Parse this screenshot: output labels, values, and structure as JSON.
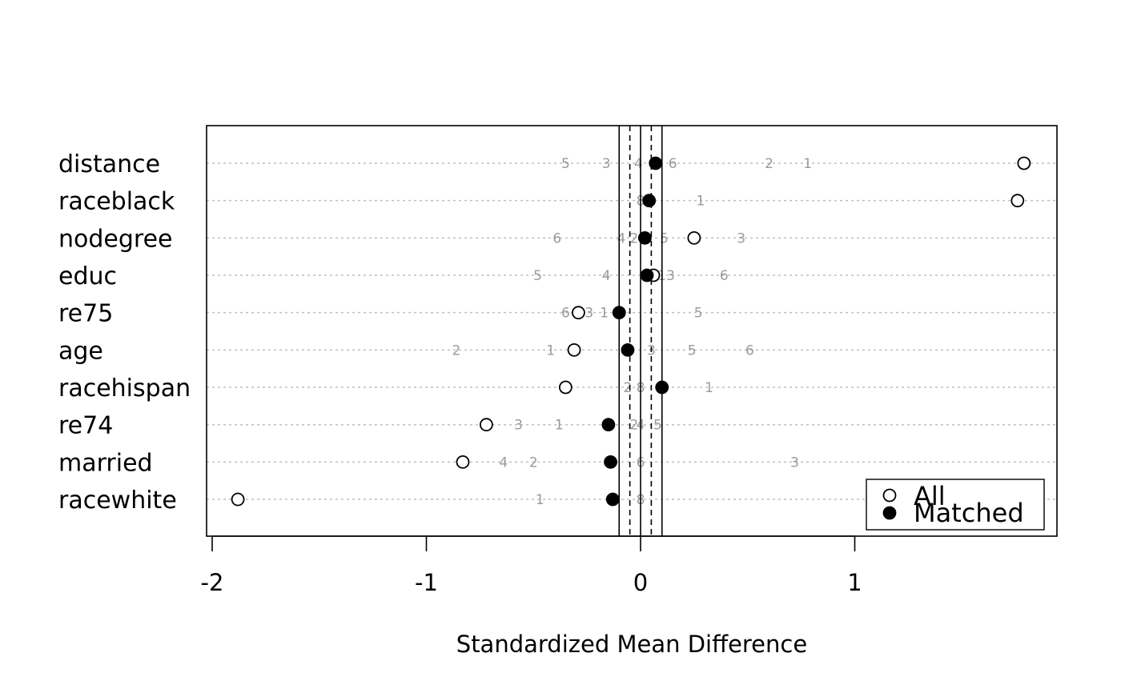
{
  "chart_data": {
    "type": "scatter",
    "title": "",
    "xlabel": "Standardized Mean Difference",
    "ylabel": "",
    "xlim": [
      -2.03,
      1.95
    ],
    "xticks": [
      -2,
      -1,
      0,
      1
    ],
    "xtick_labels": [
      "-2",
      "-1",
      "0",
      "1"
    ],
    "grid": "horizontal dotted",
    "reference_lines": {
      "solid": [
        -0.1,
        0,
        0.1
      ],
      "dashed": [
        -0.05,
        0.05
      ]
    },
    "variables": [
      "distance",
      "raceblack",
      "nodegree",
      "educ",
      "re75",
      "age",
      "racehispan",
      "re74",
      "married",
      "racewhite"
    ],
    "series": [
      {
        "name": "All",
        "marker": "open-circle",
        "values": [
          1.79,
          1.76,
          0.25,
          0.06,
          -0.29,
          -0.31,
          -0.35,
          -0.72,
          -0.83,
          -1.88
        ]
      },
      {
        "name": "Matched",
        "marker": "filled-circle",
        "values": [
          0.07,
          0.04,
          0.02,
          0.03,
          -0.1,
          -0.06,
          0.1,
          -0.15,
          -0.14,
          -0.13
        ]
      }
    ],
    "subclass_labels": [
      [
        {
          "label": "5",
          "x": -0.35
        },
        {
          "label": "3",
          "x": -0.16
        },
        {
          "label": "4",
          "x": -0.01
        },
        {
          "label": "6",
          "x": 0.15
        },
        {
          "label": "2",
          "x": 0.6
        },
        {
          "label": "1",
          "x": 0.78
        }
      ],
      [
        {
          "label": "8",
          "x": 0.0
        },
        {
          "label": "1",
          "x": 0.28
        }
      ],
      [
        {
          "label": "6",
          "x": -0.39
        },
        {
          "label": "4",
          "x": -0.09
        },
        {
          "label": "2",
          "x": -0.03
        },
        {
          "label": "5",
          "x": 0.11
        },
        {
          "label": "3",
          "x": 0.47
        }
      ],
      [
        {
          "label": "5",
          "x": -0.48
        },
        {
          "label": "4",
          "x": -0.16
        },
        {
          "label": "13",
          "x": 0.12
        },
        {
          "label": "6",
          "x": 0.39
        }
      ],
      [
        {
          "label": "6",
          "x": -0.35
        },
        {
          "label": "3",
          "x": -0.24
        },
        {
          "label": "1",
          "x": -0.17
        },
        {
          "label": "5",
          "x": 0.27
        }
      ],
      [
        {
          "label": "2",
          "x": -0.86
        },
        {
          "label": "1",
          "x": -0.42
        },
        {
          "label": "3",
          "x": 0.05
        },
        {
          "label": "5",
          "x": 0.24
        },
        {
          "label": "6",
          "x": 0.51
        }
      ],
      [
        {
          "label": "2",
          "x": -0.06
        },
        {
          "label": "8",
          "x": 0.0
        },
        {
          "label": "1",
          "x": 0.32
        }
      ],
      [
        {
          "label": "3",
          "x": -0.57
        },
        {
          "label": "1",
          "x": -0.38
        },
        {
          "label": "2",
          "x": -0.03
        },
        {
          "label": "4",
          "x": 0.0
        },
        {
          "label": "5",
          "x": 0.08
        }
      ],
      [
        {
          "label": "4",
          "x": -0.64
        },
        {
          "label": "2",
          "x": -0.5
        },
        {
          "label": "6",
          "x": 0.0
        },
        {
          "label": "3",
          "x": 0.72
        }
      ],
      [
        {
          "label": "1",
          "x": -0.47
        },
        {
          "label": "8",
          "x": 0.0
        }
      ]
    ],
    "legend": {
      "position": "bottom-right",
      "entries": [
        "All",
        "Matched"
      ]
    }
  }
}
